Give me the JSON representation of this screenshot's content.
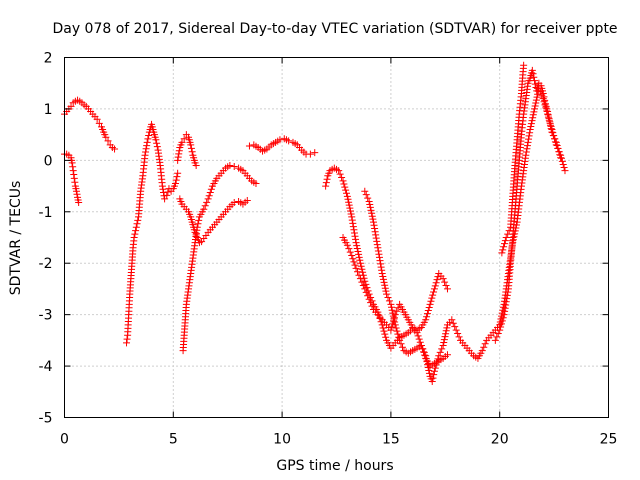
{
  "chart_data": {
    "type": "scatter",
    "title": "Day 078 of 2017, Sidereal Day-to-day VTEC variation (SDTVAR) for receiver ppte",
    "xlabel": "GPS time / hours",
    "ylabel": "SDTVAR / TECUs",
    "xlim": [
      0,
      25
    ],
    "ylim": [
      -5,
      2
    ],
    "xticks": [
      0,
      5,
      10,
      15,
      20,
      25
    ],
    "yticks": [
      -5,
      -4,
      -3,
      -2,
      -1,
      0,
      1,
      2
    ],
    "grid": true,
    "marker": "plus",
    "color": "#ff0000",
    "series": [
      {
        "name": "sat-a",
        "points": [
          [
            0.0,
            0.9
          ],
          [
            0.1,
            0.95
          ],
          [
            0.2,
            1.0
          ],
          [
            0.3,
            1.05
          ],
          [
            0.4,
            1.12
          ],
          [
            0.5,
            1.15
          ],
          [
            0.6,
            1.17
          ],
          [
            0.7,
            1.15
          ],
          [
            0.8,
            1.12
          ],
          [
            0.9,
            1.08
          ],
          [
            1.0,
            1.05
          ],
          [
            1.1,
            1.0
          ],
          [
            1.2,
            0.95
          ],
          [
            1.3,
            0.9
          ],
          [
            1.4,
            0.85
          ],
          [
            1.5,
            0.8
          ],
          [
            1.6,
            0.72
          ],
          [
            1.7,
            0.65
          ],
          [
            1.8,
            0.55
          ],
          [
            1.9,
            0.45
          ],
          [
            2.0,
            0.38
          ],
          [
            2.1,
            0.3
          ],
          [
            2.2,
            0.25
          ],
          [
            2.3,
            0.22
          ]
        ]
      },
      {
        "name": "sat-b",
        "points": [
          [
            0.0,
            0.12
          ],
          [
            0.1,
            0.12
          ],
          [
            0.2,
            0.1
          ],
          [
            0.3,
            0.05
          ],
          [
            0.35,
            -0.05
          ],
          [
            0.4,
            -0.2
          ],
          [
            0.45,
            -0.35
          ],
          [
            0.5,
            -0.5
          ],
          [
            0.55,
            -0.6
          ],
          [
            0.6,
            -0.72
          ],
          [
            0.65,
            -0.82
          ]
        ]
      },
      {
        "name": "sat-c",
        "points": [
          [
            2.85,
            -3.55
          ],
          [
            2.9,
            -3.4
          ],
          [
            2.95,
            -3.0
          ],
          [
            3.0,
            -2.6
          ],
          [
            3.05,
            -2.3
          ],
          [
            3.1,
            -2.0
          ],
          [
            3.15,
            -1.7
          ],
          [
            3.2,
            -1.5
          ],
          [
            3.3,
            -1.3
          ],
          [
            3.4,
            -1.1
          ],
          [
            3.5,
            -0.6
          ],
          [
            3.6,
            -0.3
          ],
          [
            3.7,
            0.1
          ],
          [
            3.8,
            0.35
          ],
          [
            3.9,
            0.55
          ],
          [
            4.0,
            0.7
          ],
          [
            4.1,
            0.55
          ],
          [
            4.2,
            0.4
          ],
          [
            4.3,
            0.2
          ],
          [
            4.4,
            -0.1
          ],
          [
            4.5,
            -0.5
          ],
          [
            4.6,
            -0.75
          ],
          [
            4.7,
            -0.68
          ],
          [
            4.8,
            -0.55
          ],
          [
            4.9,
            -0.6
          ],
          [
            5.0,
            -0.55
          ],
          [
            5.1,
            -0.45
          ],
          [
            5.2,
            -0.25
          ]
        ]
      },
      {
        "name": "sat-d",
        "points": [
          [
            5.2,
            0.0
          ],
          [
            5.3,
            0.25
          ],
          [
            5.4,
            0.35
          ],
          [
            5.5,
            0.42
          ],
          [
            5.6,
            0.5
          ],
          [
            5.7,
            0.45
          ],
          [
            5.8,
            0.3
          ],
          [
            5.9,
            0.1
          ],
          [
            6.0,
            -0.05
          ],
          [
            6.05,
            -0.1
          ]
        ]
      },
      {
        "name": "sat-e",
        "points": [
          [
            5.3,
            -0.75
          ],
          [
            5.4,
            -0.85
          ],
          [
            5.5,
            -0.9
          ],
          [
            5.6,
            -0.95
          ],
          [
            5.7,
            -1.0
          ],
          [
            5.8,
            -1.1
          ],
          [
            5.9,
            -1.25
          ],
          [
            6.0,
            -1.4
          ],
          [
            6.1,
            -1.5
          ],
          [
            6.2,
            -1.6
          ],
          [
            6.3,
            -1.58
          ],
          [
            6.4,
            -1.52
          ],
          [
            6.6,
            -1.4
          ],
          [
            6.8,
            -1.3
          ],
          [
            7.0,
            -1.2
          ],
          [
            7.2,
            -1.1
          ],
          [
            7.4,
            -1.0
          ],
          [
            7.6,
            -0.9
          ],
          [
            7.8,
            -0.82
          ],
          [
            8.0,
            -0.8
          ],
          [
            8.2,
            -0.85
          ],
          [
            8.4,
            -0.78
          ]
        ]
      },
      {
        "name": "sat-f",
        "points": [
          [
            5.45,
            -3.7
          ],
          [
            5.5,
            -3.4
          ],
          [
            5.55,
            -3.1
          ],
          [
            5.6,
            -2.8
          ],
          [
            5.7,
            -2.5
          ],
          [
            5.8,
            -2.2
          ],
          [
            5.9,
            -1.9
          ],
          [
            6.0,
            -1.6
          ],
          [
            6.1,
            -1.3
          ],
          [
            6.2,
            -1.1
          ],
          [
            6.4,
            -0.95
          ],
          [
            6.6,
            -0.75
          ],
          [
            6.8,
            -0.5
          ],
          [
            7.0,
            -0.35
          ],
          [
            7.2,
            -0.25
          ],
          [
            7.4,
            -0.15
          ],
          [
            7.6,
            -0.1
          ],
          [
            7.8,
            -0.12
          ],
          [
            8.0,
            -0.15
          ],
          [
            8.2,
            -0.2
          ],
          [
            8.4,
            -0.3
          ],
          [
            8.6,
            -0.4
          ],
          [
            8.8,
            -0.45
          ]
        ]
      },
      {
        "name": "sat-g",
        "points": [
          [
            8.5,
            0.28
          ],
          [
            8.7,
            0.3
          ],
          [
            8.9,
            0.25
          ],
          [
            9.1,
            0.18
          ],
          [
            9.3,
            0.22
          ],
          [
            9.5,
            0.3
          ],
          [
            9.7,
            0.35
          ],
          [
            9.9,
            0.4
          ],
          [
            10.1,
            0.42
          ],
          [
            10.3,
            0.38
          ],
          [
            10.5,
            0.35
          ],
          [
            10.7,
            0.3
          ],
          [
            10.9,
            0.2
          ],
          [
            11.1,
            0.12
          ],
          [
            11.3,
            0.12
          ],
          [
            11.5,
            0.15
          ]
        ]
      },
      {
        "name": "sat-h",
        "points": [
          [
            12.0,
            -0.5
          ],
          [
            12.1,
            -0.3
          ],
          [
            12.2,
            -0.2
          ],
          [
            12.4,
            -0.15
          ],
          [
            12.6,
            -0.2
          ],
          [
            12.8,
            -0.4
          ],
          [
            13.0,
            -0.7
          ],
          [
            13.2,
            -1.1
          ],
          [
            13.4,
            -1.6
          ],
          [
            13.6,
            -2.0
          ],
          [
            13.8,
            -2.35
          ],
          [
            14.0,
            -2.6
          ],
          [
            14.2,
            -2.8
          ],
          [
            14.4,
            -2.95
          ],
          [
            14.6,
            -3.2
          ],
          [
            14.8,
            -3.5
          ],
          [
            15.0,
            -3.65
          ],
          [
            15.2,
            -3.55
          ],
          [
            15.4,
            -3.45
          ],
          [
            15.6,
            -3.4
          ],
          [
            15.8,
            -3.35
          ],
          [
            16.0,
            -3.28
          ],
          [
            16.2,
            -3.35
          ],
          [
            16.4,
            -3.6
          ],
          [
            16.6,
            -3.85
          ],
          [
            16.8,
            -4.0
          ],
          [
            17.0,
            -3.95
          ],
          [
            17.2,
            -3.9
          ],
          [
            17.4,
            -3.85
          ],
          [
            17.6,
            -3.78
          ]
        ]
      },
      {
        "name": "sat-i",
        "points": [
          [
            12.8,
            -1.5
          ],
          [
            13.0,
            -1.65
          ],
          [
            13.2,
            -1.85
          ],
          [
            13.4,
            -2.1
          ],
          [
            13.6,
            -2.3
          ],
          [
            13.8,
            -2.5
          ],
          [
            14.0,
            -2.7
          ],
          [
            14.2,
            -2.9
          ],
          [
            14.4,
            -3.0
          ],
          [
            14.6,
            -3.1
          ],
          [
            14.8,
            -3.2
          ],
          [
            15.0,
            -3.3
          ],
          [
            15.2,
            -3.0
          ],
          [
            15.4,
            -2.8
          ],
          [
            15.6,
            -2.95
          ],
          [
            15.8,
            -3.1
          ],
          [
            16.0,
            -3.25
          ],
          [
            16.2,
            -3.3
          ],
          [
            16.4,
            -3.25
          ],
          [
            16.6,
            -3.1
          ],
          [
            16.8,
            -2.8
          ],
          [
            17.0,
            -2.5
          ],
          [
            17.2,
            -2.2
          ],
          [
            17.4,
            -2.3
          ],
          [
            17.6,
            -2.5
          ]
        ]
      },
      {
        "name": "sat-j",
        "points": [
          [
            13.8,
            -0.6
          ],
          [
            14.0,
            -0.8
          ],
          [
            14.2,
            -1.2
          ],
          [
            14.4,
            -1.7
          ],
          [
            14.6,
            -2.2
          ],
          [
            14.8,
            -2.6
          ],
          [
            15.0,
            -2.8
          ],
          [
            15.2,
            -3.2
          ],
          [
            15.4,
            -3.5
          ],
          [
            15.6,
            -3.7
          ],
          [
            15.8,
            -3.75
          ],
          [
            16.0,
            -3.7
          ],
          [
            16.2,
            -3.65
          ],
          [
            16.4,
            -3.6
          ],
          [
            16.6,
            -3.8
          ],
          [
            16.8,
            -4.2
          ],
          [
            16.9,
            -4.3
          ],
          [
            17.0,
            -4.1
          ],
          [
            17.2,
            -3.8
          ],
          [
            17.4,
            -3.6
          ],
          [
            17.6,
            -3.2
          ],
          [
            17.8,
            -3.1
          ],
          [
            18.0,
            -3.3
          ],
          [
            18.2,
            -3.5
          ],
          [
            18.4,
            -3.6
          ],
          [
            18.6,
            -3.7
          ],
          [
            18.8,
            -3.8
          ],
          [
            19.0,
            -3.85
          ],
          [
            19.2,
            -3.7
          ],
          [
            19.4,
            -3.5
          ],
          [
            19.6,
            -3.4
          ],
          [
            19.8,
            -3.3
          ],
          [
            20.0,
            -3.2
          ],
          [
            20.2,
            -2.8
          ],
          [
            20.4,
            -2.2
          ],
          [
            20.6,
            -1.6
          ],
          [
            20.8,
            -1.2
          ],
          [
            21.0,
            -0.5
          ],
          [
            21.2,
            0.1
          ],
          [
            21.4,
            0.6
          ],
          [
            21.6,
            1.0
          ],
          [
            21.8,
            1.4
          ],
          [
            22.0,
            1.2
          ],
          [
            22.2,
            0.9
          ],
          [
            22.4,
            0.6
          ],
          [
            22.6,
            0.3
          ],
          [
            22.8,
            0.1
          ],
          [
            23.0,
            -0.2
          ]
        ]
      },
      {
        "name": "sat-k",
        "points": [
          [
            19.8,
            -3.5
          ],
          [
            20.0,
            -3.3
          ],
          [
            20.2,
            -3.0
          ],
          [
            20.4,
            -2.5
          ],
          [
            20.5,
            -2.0
          ],
          [
            20.6,
            -1.5
          ],
          [
            20.7,
            -1.0
          ],
          [
            20.8,
            -0.5
          ],
          [
            20.9,
            0.0
          ],
          [
            21.0,
            0.5
          ],
          [
            21.1,
            0.9
          ],
          [
            21.2,
            1.2
          ],
          [
            21.3,
            1.5
          ],
          [
            21.4,
            1.6
          ],
          [
            21.5,
            1.75
          ],
          [
            21.6,
            1.55
          ],
          [
            21.7,
            1.35
          ],
          [
            21.8,
            1.5
          ],
          [
            21.9,
            1.45
          ],
          [
            22.0,
            1.3
          ],
          [
            22.1,
            1.1
          ],
          [
            22.2,
            0.95
          ],
          [
            22.3,
            0.75
          ],
          [
            22.4,
            0.55
          ],
          [
            22.6,
            0.35
          ],
          [
            22.8,
            0.05
          ]
        ]
      },
      {
        "name": "sat-l",
        "points": [
          [
            20.1,
            -1.8
          ],
          [
            20.3,
            -1.5
          ],
          [
            20.5,
            -1.3
          ],
          [
            20.6,
            -0.7
          ],
          [
            20.7,
            -0.1
          ],
          [
            20.8,
            0.4
          ],
          [
            20.9,
            0.9
          ],
          [
            21.0,
            1.3
          ],
          [
            21.05,
            1.6
          ],
          [
            21.1,
            1.85
          ]
        ]
      }
    ]
  }
}
